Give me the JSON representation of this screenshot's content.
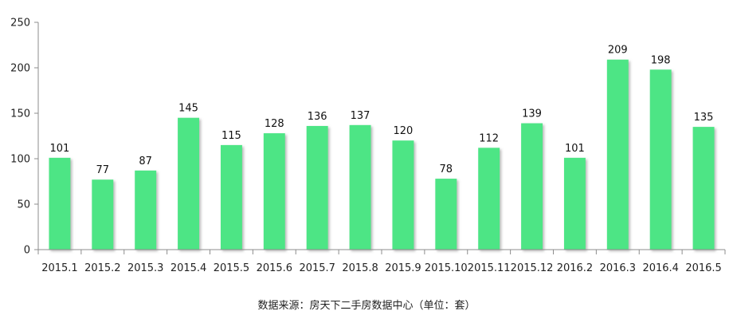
{
  "chart_data": {
    "type": "bar",
    "categories": [
      "2015.1",
      "2015.2",
      "2015.3",
      "2015.4",
      "2015.5",
      "2015.6",
      "2015.7",
      "2015.8",
      "2015.9",
      "2015.10",
      "2015.11",
      "2015.12",
      "2016.2",
      "2016.3",
      "2016.4",
      "2016.5"
    ],
    "values": [
      101,
      77,
      87,
      145,
      115,
      128,
      136,
      137,
      120,
      78,
      112,
      139,
      101,
      209,
      198,
      135
    ],
    "title": "",
    "xlabel": "",
    "ylabel": "",
    "ylim": [
      0,
      250
    ],
    "yticks": [
      0,
      50,
      100,
      150,
      200,
      250
    ],
    "grid": false,
    "legend": "none",
    "data_labels": true
  },
  "colors": {
    "bar": "#4de585",
    "bar_shadow": "#b8b8b8",
    "axis": "#8c8c8c",
    "text": "#222222"
  },
  "footer": {
    "source": "数据来源：房天下二手房数据中心（单位：套）"
  }
}
